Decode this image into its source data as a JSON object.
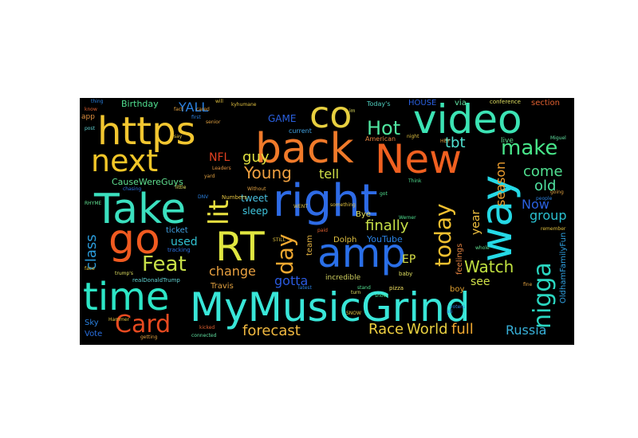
{
  "words": [
    {
      "text": "MyMusicGrind",
      "color": "#39e6d8"
    },
    {
      "text": "right",
      "color": "#2e6be6"
    },
    {
      "text": "https",
      "color": "#f2c630"
    },
    {
      "text": "video",
      "color": "#3ce3b4"
    },
    {
      "text": "back",
      "color": "#f07a2a"
    },
    {
      "text": "New",
      "color": "#f06020"
    },
    {
      "text": "Take",
      "color": "#3be0bf"
    },
    {
      "text": "time",
      "color": "#2de6c6"
    },
    {
      "text": "amp",
      "color": "#2a6fe8"
    },
    {
      "text": "way",
      "color": "#25d9e6"
    },
    {
      "text": "go",
      "color": "#f05a20"
    },
    {
      "text": "RT",
      "color": "#e0e640"
    },
    {
      "text": "co",
      "color": "#e8d040"
    },
    {
      "text": "next",
      "color": "#f2c628"
    },
    {
      "text": "Card",
      "color": "#e84a20"
    },
    {
      "text": "nigga",
      "color": "#2ad6c0"
    },
    {
      "text": "lit",
      "color": "#e8e040"
    },
    {
      "text": "Feat",
      "color": "#c8e048"
    },
    {
      "text": "day",
      "color": "#f0a830"
    },
    {
      "text": "today",
      "color": "#f2c030"
    },
    {
      "text": "make",
      "color": "#48e68a"
    },
    {
      "text": "Hot",
      "color": "#50e6a0"
    },
    {
      "text": "Young",
      "color": "#f0a040"
    },
    {
      "text": "tbt",
      "color": "#50e0d0"
    },
    {
      "text": "Watch",
      "color": "#c0e040"
    },
    {
      "text": "change",
      "color": "#e8a040"
    },
    {
      "text": "finally",
      "color": "#c8e048"
    },
    {
      "text": "forecast",
      "color": "#f0b840"
    },
    {
      "text": "World",
      "color": "#e8d040"
    },
    {
      "text": "Race",
      "color": "#f0d040"
    },
    {
      "text": "Russia",
      "color": "#38b0d8"
    },
    {
      "text": "full",
      "color": "#f0a830"
    },
    {
      "text": "class",
      "color": "#2a9ad8"
    },
    {
      "text": "gotta",
      "color": "#2a5ae0"
    },
    {
      "text": "season",
      "color": "#f0a030"
    },
    {
      "text": "group",
      "color": "#2ac0d0"
    },
    {
      "text": "come",
      "color": "#50e090"
    },
    {
      "text": "old",
      "color": "#50e0a0"
    },
    {
      "text": "tell",
      "color": "#d0e048"
    },
    {
      "text": "Now",
      "color": "#2a60e0"
    },
    {
      "text": "guy",
      "color": "#e0e040"
    },
    {
      "text": "YALL",
      "color": "#2a80e0"
    },
    {
      "text": "NFL",
      "color": "#e04020"
    },
    {
      "text": "used",
      "color": "#30c0d0"
    },
    {
      "text": "year",
      "color": "#f0c040"
    },
    {
      "text": "see",
      "color": "#d0e048"
    },
    {
      "text": "EP",
      "color": "#d8e048"
    },
    {
      "text": "tweet",
      "color": "#48c0e0"
    },
    {
      "text": "sleep",
      "color": "#40c8e0"
    },
    {
      "text": "Birthday",
      "color": "#50e090"
    },
    {
      "text": "GAME",
      "color": "#2a60e0"
    },
    {
      "text": "CauseWereGuys",
      "color": "#60e090"
    },
    {
      "text": "ticket",
      "color": "#40a0e0"
    },
    {
      "text": "YouTube",
      "color": "#2a80e0"
    },
    {
      "text": "Bye",
      "color": "#e0e060"
    },
    {
      "text": "Dolph",
      "color": "#e0c040"
    },
    {
      "text": "team",
      "color": "#e0b040"
    },
    {
      "text": "boy",
      "color": "#e0a030"
    },
    {
      "text": "Travis",
      "color": "#e0a040"
    },
    {
      "text": "via",
      "color": "#60e0a0"
    },
    {
      "text": "HOUSE",
      "color": "#2a60e0"
    },
    {
      "text": "section",
      "color": "#e06030"
    },
    {
      "text": "feelings",
      "color": "#e08040"
    },
    {
      "text": "OldhamFamilyFun",
      "color": "#30a0e0"
    },
    {
      "text": "incredible",
      "color": "#d0d060"
    },
    {
      "text": "Sky",
      "color": "#2a80e0"
    },
    {
      "text": "Vote",
      "color": "#2a70e0"
    },
    {
      "text": "app",
      "color": "#e09040"
    },
    {
      "text": "live",
      "color": "#60e090"
    },
    {
      "text": "Today's",
      "color": "#50d0c0"
    },
    {
      "text": "conference",
      "color": "#e0e060"
    },
    {
      "text": "current",
      "color": "#40a0e0"
    },
    {
      "text": "American",
      "color": "#e08040"
    },
    {
      "text": "tracking",
      "color": "#2a70e0"
    },
    {
      "text": "realDonaldTrump",
      "color": "#60d0d0"
    },
    {
      "text": "Numbers",
      "color": "#e0c040"
    },
    {
      "text": "baby",
      "color": "#e0e060"
    },
    {
      "text": "pizza",
      "color": "#f0e060"
    },
    {
      "text": "Hammer",
      "color": "#e0c040"
    },
    {
      "text": "trump's",
      "color": "#e0e060"
    },
    {
      "text": "kicked",
      "color": "#e06030"
    },
    {
      "text": "connected",
      "color": "#60e0a0"
    },
    {
      "text": "getting",
      "color": "#e0a040"
    },
    {
      "text": "Miguel",
      "color": "#60e0a0"
    },
    {
      "text": "Leaders",
      "color": "#e09040"
    },
    {
      "text": "chasing",
      "color": "#2a70e0"
    },
    {
      "text": "RHYME",
      "color": "#60e090"
    },
    {
      "text": "thing",
      "color": "#2a80e0"
    },
    {
      "text": "post",
      "color": "#60d0d0"
    },
    {
      "text": "people",
      "color": "#2a80e0"
    },
    {
      "text": "remember",
      "color": "#e0c040"
    },
    {
      "text": "going",
      "color": "#e0a040"
    },
    {
      "text": "night",
      "color": "#e0c040"
    },
    {
      "text": "stand",
      "color": "#50e090"
    },
    {
      "text": "whole",
      "color": "#60e090"
    },
    {
      "text": "turn",
      "color": "#e0e060"
    },
    {
      "text": "Werner",
      "color": "#50e090"
    },
    {
      "text": "kyhumane",
      "color": "#e0c040"
    },
    {
      "text": "first",
      "color": "#2a80e0"
    },
    {
      "text": "cared",
      "color": "#e0a040"
    },
    {
      "text": "ati",
      "color": "#2a80e0"
    },
    {
      "text": "voters",
      "color": "#2a80e0"
    },
    {
      "text": "fact",
      "color": "#e0a040"
    },
    {
      "text": "Without",
      "color": "#e0a040"
    },
    {
      "text": "SNOW",
      "color": "#e0c040"
    },
    {
      "text": "paid",
      "color": "#e06030"
    },
    {
      "text": "HEY",
      "color": "#e0a040"
    },
    {
      "text": "will",
      "color": "#e0c040"
    },
    {
      "text": "something",
      "color": "#e0c040"
    },
    {
      "text": "little",
      "color": "#e0e060"
    },
    {
      "text": "DNV",
      "color": "#2a80e0"
    },
    {
      "text": "got",
      "color": "#50e090"
    },
    {
      "text": "Think",
      "color": "#50e090"
    },
    {
      "text": "senior",
      "color": "#e0a040"
    },
    {
      "text": "WENT",
      "color": "#e0c040"
    },
    {
      "text": "STILL",
      "color": "#e0c040"
    },
    {
      "text": "latest",
      "color": "#2a80e0"
    },
    {
      "text": "im",
      "color": "#e0e060"
    },
    {
      "text": "face",
      "color": "#e0c040"
    },
    {
      "text": "fine",
      "color": "#e0a040"
    },
    {
      "text": "yard",
      "color": "#e0a040"
    },
    {
      "text": "say",
      "color": "#e0c040"
    },
    {
      "text": "know",
      "color": "#e06030"
    },
    {
      "text": "snow",
      "color": "#50e090"
    }
  ]
}
